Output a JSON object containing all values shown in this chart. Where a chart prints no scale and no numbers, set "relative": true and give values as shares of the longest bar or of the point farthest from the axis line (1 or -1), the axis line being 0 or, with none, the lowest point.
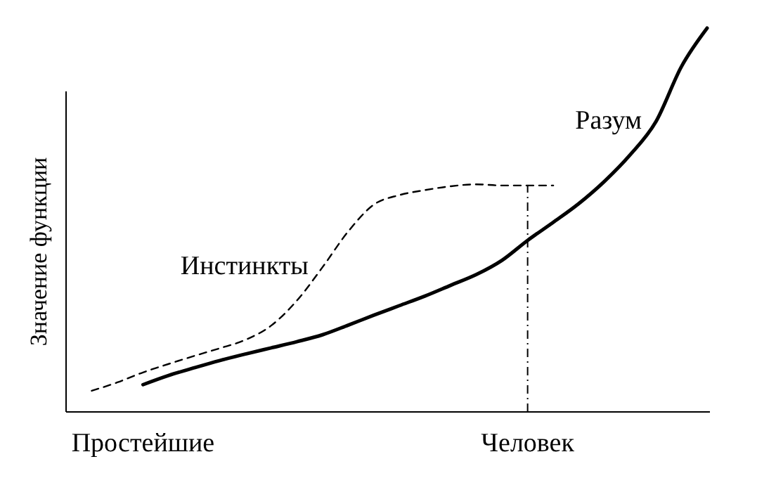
{
  "chart_data": {
    "type": "line",
    "relative": true,
    "ylabel": "Значение функции",
    "categories": [
      null,
      null,
      null,
      "Простейшие",
      null,
      null,
      null,
      null,
      null,
      null,
      null,
      null,
      null,
      null,
      null,
      null,
      null,
      null,
      "Человек",
      null,
      null,
      null,
      null,
      null,
      null,
      null
    ],
    "series": [
      {
        "name": "Инстинкты",
        "color": "#000000",
        "line_style": "dashed",
        "values": [
          null,
          0.055,
          0.077,
          0.103,
          0.125,
          0.146,
          0.166,
          0.188,
          0.225,
          0.29,
          0.377,
          0.47,
          0.54,
          0.565,
          0.578,
          0.588,
          0.593,
          0.59,
          0.59,
          0.59,
          null,
          null,
          null,
          null,
          null,
          null
        ]
      },
      {
        "name": "Разум",
        "color": "#000000",
        "line_style": "solid",
        "values": [
          null,
          null,
          null,
          0.071,
          0.095,
          0.115,
          0.134,
          0.151,
          0.167,
          0.183,
          0.201,
          0.226,
          0.252,
          0.277,
          0.302,
          0.33,
          0.358,
          0.395,
          0.447,
          0.494,
          0.543,
          0.601,
          0.67,
          0.756,
          0.9,
          1
        ]
      }
    ],
    "ref_lines": [
      {
        "axis": "x",
        "value": "Человек",
        "line_style": "dashdot",
        "color": "#000000"
      }
    ],
    "grid": false,
    "legend": false
  }
}
